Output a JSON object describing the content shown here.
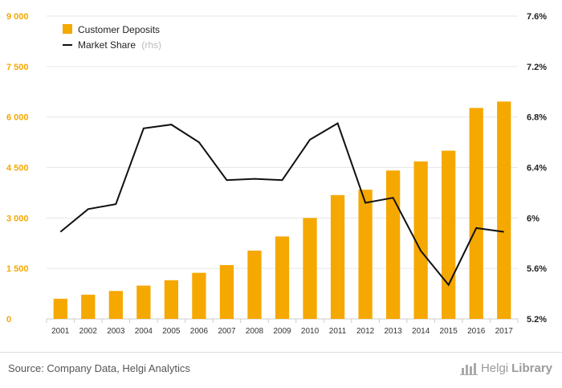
{
  "chart_data": {
    "type": "bar+line",
    "title": "",
    "categories": [
      "2001",
      "2002",
      "2003",
      "2004",
      "2005",
      "2006",
      "2007",
      "2008",
      "2009",
      "2010",
      "2011",
      "2012",
      "2013",
      "2014",
      "2015",
      "2016",
      "2017"
    ],
    "series": [
      {
        "name": "Customer Deposits",
        "kind": "bar",
        "axis": "left",
        "color": "#f5a800",
        "values": [
          600,
          720,
          830,
          990,
          1150,
          1370,
          1600,
          2030,
          2450,
          3000,
          3680,
          3840,
          4410,
          4680,
          5000,
          6270,
          6460
        ]
      },
      {
        "name": "Market Share",
        "suffix": "(rhs)",
        "kind": "line",
        "axis": "right",
        "color": "#111111",
        "values": [
          5.89,
          6.07,
          6.11,
          6.71,
          6.74,
          6.6,
          6.3,
          6.31,
          6.3,
          6.62,
          6.75,
          6.12,
          6.16,
          5.74,
          5.47,
          5.92,
          5.89
        ]
      }
    ],
    "left_axis": {
      "min": 0,
      "max": 9000,
      "ticks": [
        0,
        1500,
        3000,
        4500,
        6000,
        7500,
        9000
      ],
      "tick_labels": [
        "0",
        "1 500",
        "3 000",
        "4 500",
        "6 000",
        "7 500",
        "9 000"
      ]
    },
    "right_axis": {
      "min": 5.2,
      "max": 7.6,
      "ticks": [
        5.2,
        5.6,
        6.0,
        6.4,
        6.8,
        7.2,
        7.6
      ],
      "tick_labels": [
        "5.2%",
        "5.6%",
        "6%",
        "6.4%",
        "6.8%",
        "7.2%",
        "7.6%"
      ]
    },
    "grid": true,
    "legend_position": "top-left"
  },
  "footer": {
    "source": "Source: Company Data, Helgi Analytics",
    "brand_light": "Helgi",
    "brand_bold": "Library"
  }
}
